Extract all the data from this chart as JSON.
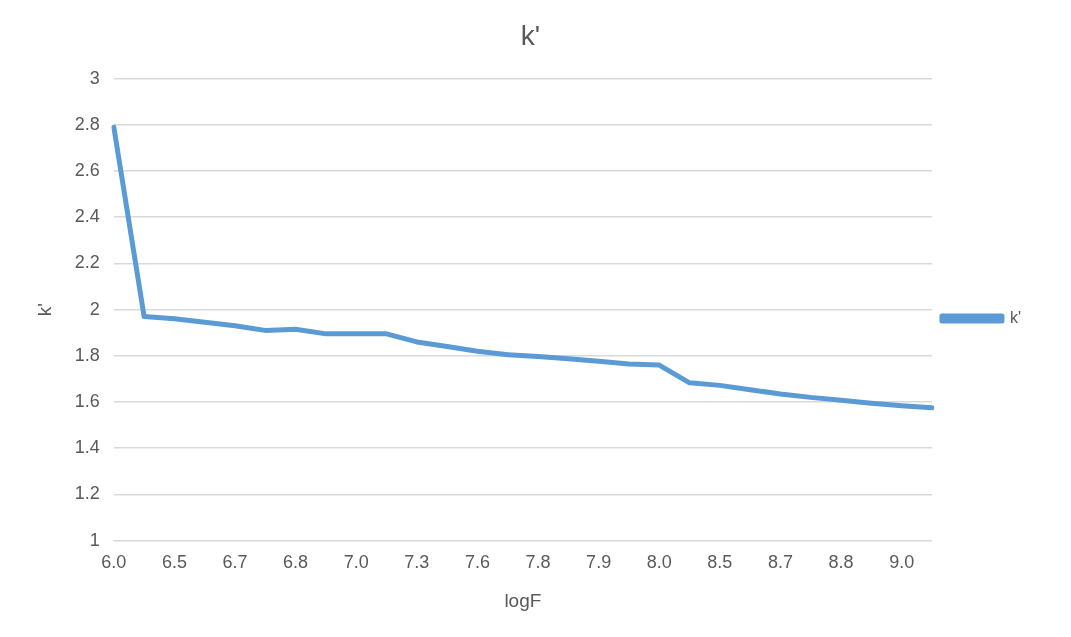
{
  "chart_data": {
    "type": "line",
    "title": "k'",
    "xlabel": "logF",
    "ylabel": "k'",
    "categories": [
      "6.0",
      null,
      "6.5",
      null,
      "6.7",
      null,
      "6.8",
      null,
      "7.0",
      null,
      "7.3",
      null,
      "7.6",
      null,
      "7.8",
      null,
      "7.9",
      null,
      "8.0",
      null,
      "8.5",
      null,
      "8.7",
      null,
      "8.8",
      null,
      "9.0",
      null
    ],
    "series": [
      {
        "name": "k'",
        "color": "#5b9bd5",
        "values": [
          2.79,
          1.97,
          1.96,
          1.945,
          1.93,
          1.91,
          1.915,
          1.895,
          1.895,
          1.895,
          1.86,
          1.84,
          1.82,
          1.805,
          1.797,
          1.787,
          1.776,
          1.765,
          1.76,
          1.683,
          1.672,
          1.653,
          1.635,
          1.62,
          1.608,
          1.595,
          1.584,
          1.575
        ]
      }
    ],
    "ylim": [
      1,
      3
    ],
    "yticks": [
      1,
      1.2,
      1.4,
      1.6,
      1.8,
      2,
      2.2,
      2.4,
      2.6,
      2.8,
      3
    ],
    "grid": "y",
    "legend": "right",
    "marker": "none",
    "line_style": "solid"
  }
}
